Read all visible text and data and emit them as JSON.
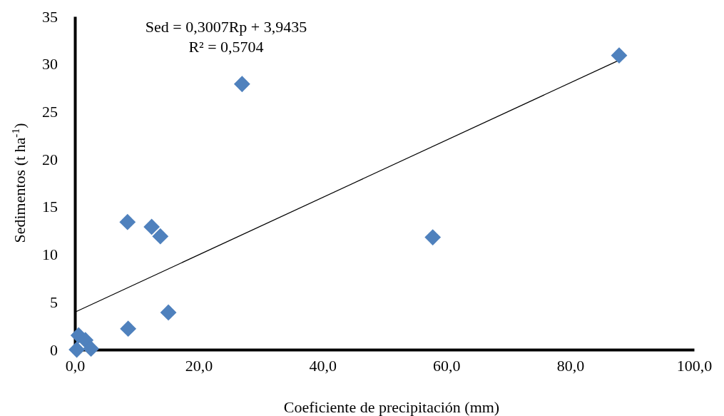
{
  "chart_data": {
    "type": "scatter",
    "xlabel": "Coeficiente de precipitación (mm)",
    "ylabel": "Sedimentos (t ha$^{-1}$)",
    "xlim": [
      0,
      100
    ],
    "ylim": [
      0,
      35
    ],
    "xticks": [
      {
        "value": 0,
        "label": "0,0"
      },
      {
        "value": 20,
        "label": "20,0"
      },
      {
        "value": 40,
        "label": "40,0"
      },
      {
        "value": 60,
        "label": "60,0"
      },
      {
        "value": 80,
        "label": "80,0"
      },
      {
        "value": 100,
        "label": "100,0"
      }
    ],
    "yticks": [
      0,
      5,
      10,
      15,
      20,
      25,
      30,
      35
    ],
    "grid": false,
    "annotations": [
      "Sed = 0,3007Rp + 3,9435",
      "R² = 0,5704"
    ],
    "series": [
      {
        "color": "#4f81bd",
        "marker": "diamond",
        "x": [
          0.3,
          0.6,
          1.7,
          2.6,
          8.5,
          8.6,
          12.4,
          13.8,
          15.1,
          27.0,
          57.8,
          87.9
        ],
        "values": [
          0,
          1.5,
          1.0,
          0.1,
          13.4,
          2.2,
          12.9,
          11.9,
          3.9,
          27.9,
          11.8,
          30.9
        ]
      },
      {
        "type": "line",
        "color": "#000000",
        "line_style": "solid",
        "marker": "none",
        "x": [
          0,
          87.9
        ],
        "values": [
          3.94,
          30.4
        ]
      }
    ]
  }
}
